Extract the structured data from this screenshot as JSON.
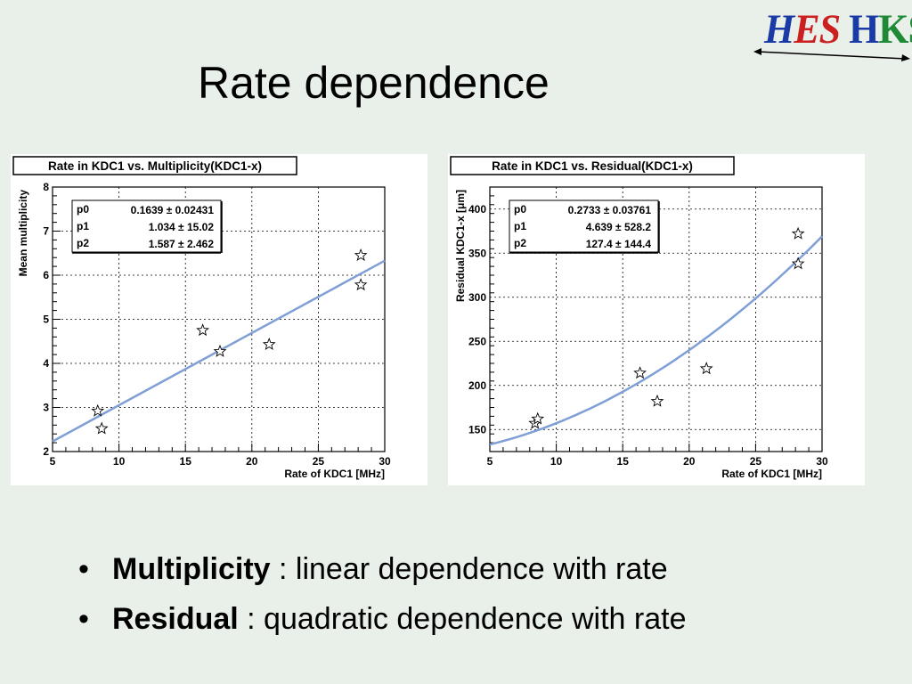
{
  "logo": {
    "part1": "H",
    "part2": "ES",
    "part3": "H",
    "part4": "KS"
  },
  "slide_title": "Rate dependence",
  "bullets": [
    {
      "bold": "Multiplicity",
      "rest": " : linear dependence with rate"
    },
    {
      "bold": "Residual",
      "rest": " : quadratic dependence with rate"
    }
  ],
  "chart_data": [
    {
      "type": "scatter",
      "title": "Rate in KDC1 vs. Multiplicity(KDC1-x)",
      "xlabel": "Rate of KDC1 [MHz]",
      "ylabel": "Mean multiplicity",
      "xlim": [
        5,
        30
      ],
      "ylim": [
        2,
        8
      ],
      "xticks": [
        "5",
        "10",
        "15",
        "20",
        "25",
        "30"
      ],
      "yticks": [
        "2",
        "3",
        "4",
        "5",
        "6",
        "7",
        "8"
      ],
      "grid": true,
      "points": [
        {
          "x": 8.4,
          "y": 2.92
        },
        {
          "x": 8.7,
          "y": 2.52
        },
        {
          "x": 16.3,
          "y": 4.75
        },
        {
          "x": 17.6,
          "y": 4.27
        },
        {
          "x": 21.3,
          "y": 4.43
        },
        {
          "x": 28.2,
          "y": 6.45
        },
        {
          "x": 28.2,
          "y": 5.78
        }
      ],
      "fit": {
        "type": "line",
        "x": [
          5,
          30
        ],
        "y": [
          2.23,
          6.33
        ]
      },
      "stats": [
        {
          "name": "p0",
          "value": "0.1639 ± 0.02431"
        },
        {
          "name": "p1",
          "value": "1.034 ± 15.02"
        },
        {
          "name": "p2",
          "value": "1.587 ± 2.462"
        }
      ],
      "colors": {
        "fit": "#7f9fd6",
        "marker": "#000000"
      }
    },
    {
      "type": "scatter",
      "title": "Rate in KDC1 vs. Residual(KDC1-x)",
      "xlabel": "Rate of KDC1 [MHz]",
      "ylabel": "Residual KDC1-x [μm]",
      "xlim": [
        5,
        30
      ],
      "ylim": [
        125,
        425
      ],
      "xticks": [
        "5",
        "10",
        "15",
        "20",
        "25",
        "30"
      ],
      "yticks": [
        "150",
        "200",
        "250",
        "300",
        "350",
        "400"
      ],
      "grid": true,
      "points": [
        {
          "x": 8.4,
          "y": 157
        },
        {
          "x": 8.6,
          "y": 162
        },
        {
          "x": 16.3,
          "y": 214
        },
        {
          "x": 17.6,
          "y": 182
        },
        {
          "x": 21.3,
          "y": 219
        },
        {
          "x": 28.2,
          "y": 372
        },
        {
          "x": 28.2,
          "y": 338
        }
      ],
      "fit": {
        "type": "quadratic",
        "x": [
          5,
          10,
          15,
          20,
          25,
          30
        ],
        "y": [
          133,
          153,
          194,
          240,
          300,
          369
        ]
      },
      "stats": [
        {
          "name": "p0",
          "value": "0.2733 ± 0.03761"
        },
        {
          "name": "p1",
          "value": "4.639 ± 528.2"
        },
        {
          "name": "p2",
          "value": "127.4 ± 144.4"
        }
      ],
      "colors": {
        "fit": "#7f9fd6",
        "marker": "#000000"
      }
    }
  ]
}
